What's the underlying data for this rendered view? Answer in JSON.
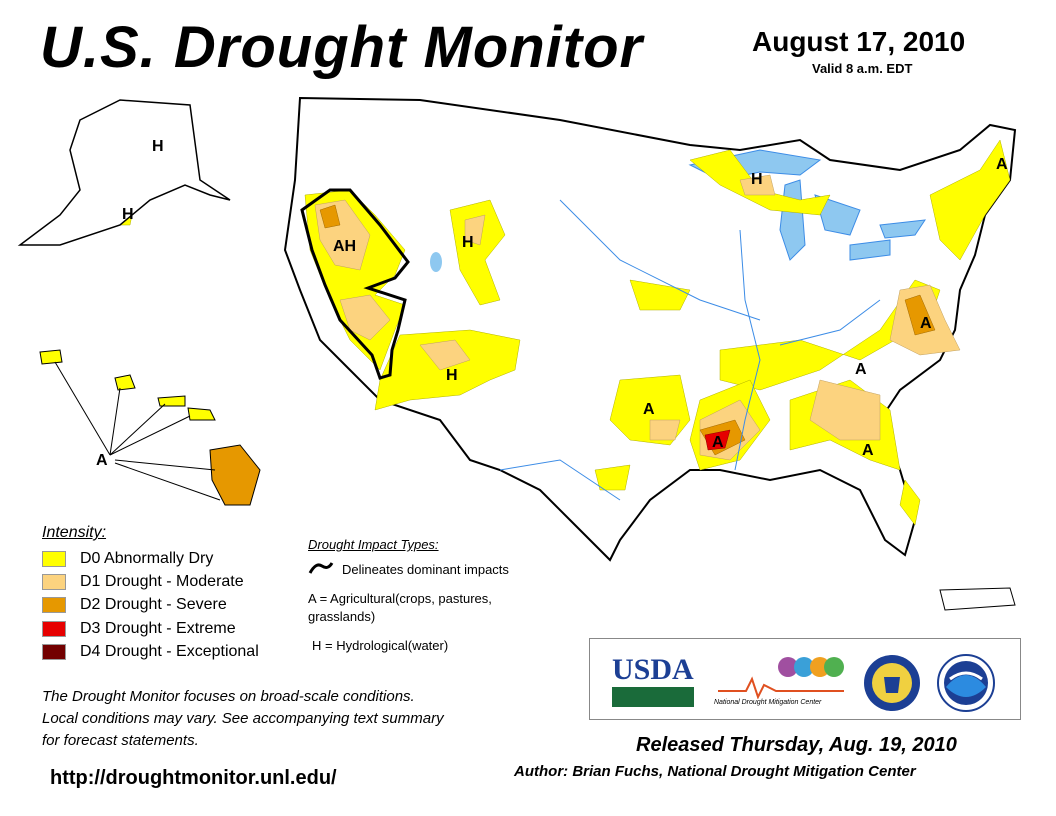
{
  "header": {
    "title": "U.S. Drought Monitor",
    "date": "August 17, 2010",
    "valid": "Valid 8 a.m. EDT"
  },
  "legend": {
    "title": "Intensity:",
    "items": [
      {
        "code": "D0",
        "label": "D0 Abnormally Dry",
        "color": "#FFFF00"
      },
      {
        "code": "D1",
        "label": "D1 Drought - Moderate",
        "color": "#FCD37F"
      },
      {
        "code": "D2",
        "label": "D2 Drought - Severe",
        "color": "#E69800"
      },
      {
        "code": "D3",
        "label": "D3 Drought - Extreme",
        "color": "#E60000"
      },
      {
        "code": "D4",
        "label": "D4 Drought - Exceptional",
        "color": "#730000"
      }
    ]
  },
  "impacts": {
    "title": "Drought Impact Types:",
    "delineates": "Delineates dominant impacts",
    "agricultural": "A = Agricultural(crops, pastures, grasslands)",
    "hydrological": "H = Hydrological(water)"
  },
  "map_labels": {
    "alaska_h1": "H",
    "alaska_h2": "H",
    "hawaii_a": "A",
    "west_ah": "AH",
    "wyoming_h": "H",
    "utah_h": "H",
    "michigan_h": "H",
    "maine_a": "A",
    "virginia_a": "A",
    "tennessee_a": "A",
    "oklahoma_a": "A",
    "arkansas_a": "A",
    "georgia_a": "A"
  },
  "note": "The Drought Monitor focuses on broad-scale conditions.\nLocal conditions may vary. See accompanying text summary\nfor forecast statements.",
  "url": "http://droughtmonitor.unl.edu/",
  "released": "Released Thursday, Aug. 19, 2010",
  "author": "Author: Brian Fuchs, National Drought Mitigation Center",
  "logos": {
    "usda": "USDA",
    "ndmc": "National Drought Mitigation Center"
  },
  "colors": {
    "water": "#8EC8F0",
    "land_outline": "#000000",
    "river": "#3C8CE6"
  }
}
